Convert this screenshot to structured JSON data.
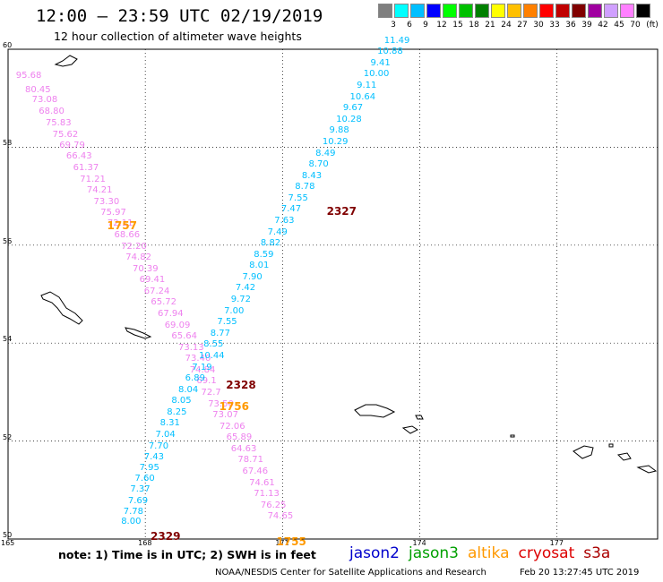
{
  "header": {
    "title": "12:00 — 23:59 UTC 02/19/2019",
    "subtitle": "12 hour collection of altimeter wave heights"
  },
  "legend": {
    "unit": "(ft)",
    "items": [
      {
        "label": "3",
        "color": "#7f7f7f"
      },
      {
        "label": "6",
        "color": "#00ffff"
      },
      {
        "label": "9",
        "color": "#00bfff"
      },
      {
        "label": "12",
        "color": "#0000ff"
      },
      {
        "label": "15",
        "color": "#00ff00"
      },
      {
        "label": "18",
        "color": "#00c000"
      },
      {
        "label": "21",
        "color": "#008000"
      },
      {
        "label": "24",
        "color": "#ffff00"
      },
      {
        "label": "27",
        "color": "#ffc000"
      },
      {
        "label": "30",
        "color": "#ff8000"
      },
      {
        "label": "33",
        "color": "#ff0000"
      },
      {
        "label": "36",
        "color": "#c00000"
      },
      {
        "label": "39",
        "color": "#800000"
      },
      {
        "label": "42",
        "color": "#a000a0"
      },
      {
        "label": "45",
        "color": "#d0a0ff"
      },
      {
        "label": "70",
        "color": "#ff80ff"
      },
      {
        "label": "",
        "color": "#000000"
      }
    ]
  },
  "map": {
    "lat_labels": [
      "60",
      "58",
      "56",
      "54",
      "52",
      "50"
    ],
    "lon_labels": [
      "165",
      "168",
      "171",
      "174",
      "177"
    ]
  },
  "tracks": [
    {
      "name": "cryosat-track",
      "color": "#ee82ee",
      "points": [
        {
          "v": "95.68",
          "lon": 165.25,
          "lat": 59.45
        },
        {
          "v": "80.45",
          "lon": 165.45,
          "lat": 59.15
        },
        {
          "v": "73.08",
          "lon": 165.6,
          "lat": 58.95
        },
        {
          "v": "68.80",
          "lon": 165.75,
          "lat": 58.72
        },
        {
          "v": "75.83",
          "lon": 165.9,
          "lat": 58.48
        },
        {
          "v": "75.62",
          "lon": 166.05,
          "lat": 58.25
        },
        {
          "v": "69.79",
          "lon": 166.2,
          "lat": 58.02
        },
        {
          "v": "66.43",
          "lon": 166.35,
          "lat": 57.8
        },
        {
          "v": "61.37",
          "lon": 166.5,
          "lat": 57.57
        },
        {
          "v": "71.21",
          "lon": 166.65,
          "lat": 57.34
        },
        {
          "v": "74.21",
          "lon": 166.8,
          "lat": 57.12
        },
        {
          "v": "73.30",
          "lon": 166.95,
          "lat": 56.88
        },
        {
          "v": "75.97",
          "lon": 167.1,
          "lat": 56.65
        },
        {
          "v": "72.11",
          "lon": 167.25,
          "lat": 56.43
        },
        {
          "v": "68.66",
          "lon": 167.4,
          "lat": 56.2
        },
        {
          "v": "72.20",
          "lon": 167.55,
          "lat": 55.96
        },
        {
          "v": "74.82",
          "lon": 167.65,
          "lat": 55.74
        },
        {
          "v": "70.39",
          "lon": 167.8,
          "lat": 55.5
        },
        {
          "v": "69.41",
          "lon": 167.95,
          "lat": 55.28
        },
        {
          "v": "67.24",
          "lon": 168.05,
          "lat": 55.05
        },
        {
          "v": "65.72",
          "lon": 168.2,
          "lat": 54.82
        },
        {
          "v": "67.94",
          "lon": 168.35,
          "lat": 54.59
        },
        {
          "v": "69.09",
          "lon": 168.5,
          "lat": 54.36
        },
        {
          "v": "65.64",
          "lon": 168.65,
          "lat": 54.13
        },
        {
          "v": "73.13",
          "lon": 168.8,
          "lat": 53.9
        },
        {
          "v": "73.40",
          "lon": 168.95,
          "lat": 53.67
        },
        {
          "v": "74.84",
          "lon": 169.05,
          "lat": 53.44
        },
        {
          "v": "69.1",
          "lon": 169.2,
          "lat": 53.21
        },
        {
          "v": "72.7",
          "lon": 169.3,
          "lat": 52.98
        },
        {
          "v": "73.50",
          "lon": 169.45,
          "lat": 52.75
        },
        {
          "v": "73.07",
          "lon": 169.55,
          "lat": 52.52
        },
        {
          "v": "72.06",
          "lon": 169.7,
          "lat": 52.29
        },
        {
          "v": "65.89",
          "lon": 169.85,
          "lat": 52.06
        },
        {
          "v": "64.63",
          "lon": 169.95,
          "lat": 51.83
        },
        {
          "v": "78.71",
          "lon": 170.1,
          "lat": 51.6
        },
        {
          "v": "67.46",
          "lon": 170.2,
          "lat": 51.37
        },
        {
          "v": "74.61",
          "lon": 170.35,
          "lat": 51.14
        },
        {
          "v": "71.13",
          "lon": 170.45,
          "lat": 50.91
        },
        {
          "v": "76.25",
          "lon": 170.6,
          "lat": 50.68
        },
        {
          "v": "74.65",
          "lon": 170.75,
          "lat": 50.45
        }
      ]
    },
    {
      "name": "jason-track",
      "color": "#00bfff",
      "points": [
        {
          "v": "8.00",
          "lon": 167.55,
          "lat": 50.35
        },
        {
          "v": "7.78",
          "lon": 167.6,
          "lat": 50.55
        },
        {
          "v": "7.69",
          "lon": 167.7,
          "lat": 50.77
        },
        {
          "v": "7.37",
          "lon": 167.75,
          "lat": 51.0
        },
        {
          "v": "7.60",
          "lon": 167.85,
          "lat": 51.22
        },
        {
          "v": "7.95",
          "lon": 167.95,
          "lat": 51.44
        },
        {
          "v": "7.43",
          "lon": 168.05,
          "lat": 51.66
        },
        {
          "v": "7.70",
          "lon": 168.15,
          "lat": 51.88
        },
        {
          "v": "7.04",
          "lon": 168.3,
          "lat": 52.12
        },
        {
          "v": "8.31",
          "lon": 168.4,
          "lat": 52.35
        },
        {
          "v": "8.25",
          "lon": 168.55,
          "lat": 52.58
        },
        {
          "v": "8.05",
          "lon": 168.65,
          "lat": 52.81
        },
        {
          "v": "8.04",
          "lon": 168.8,
          "lat": 53.04
        },
        {
          "v": "6.89",
          "lon": 168.95,
          "lat": 53.27
        },
        {
          "v": "7.19",
          "lon": 169.1,
          "lat": 53.5
        },
        {
          "v": "10.44",
          "lon": 169.25,
          "lat": 53.73
        },
        {
          "v": "8.55",
          "lon": 169.35,
          "lat": 53.96
        },
        {
          "v": "8.77",
          "lon": 169.5,
          "lat": 54.19
        },
        {
          "v": "7.55",
          "lon": 169.65,
          "lat": 54.42
        },
        {
          "v": "7.00",
          "lon": 169.8,
          "lat": 54.65
        },
        {
          "v": "9.72",
          "lon": 169.95,
          "lat": 54.88
        },
        {
          "v": "7.42",
          "lon": 170.05,
          "lat": 55.11
        },
        {
          "v": "7.90",
          "lon": 170.2,
          "lat": 55.34
        },
        {
          "v": "8.01",
          "lon": 170.35,
          "lat": 55.57
        },
        {
          "v": "8.59",
          "lon": 170.45,
          "lat": 55.8
        },
        {
          "v": "8.82",
          "lon": 170.6,
          "lat": 56.03
        },
        {
          "v": "7.49",
          "lon": 170.75,
          "lat": 56.26
        },
        {
          "v": "7.63",
          "lon": 170.9,
          "lat": 56.49
        },
        {
          "v": "7.47",
          "lon": 171.05,
          "lat": 56.72
        },
        {
          "v": "7.55",
          "lon": 171.2,
          "lat": 56.95
        },
        {
          "v": "8.78",
          "lon": 171.35,
          "lat": 57.18
        },
        {
          "v": "8.43",
          "lon": 171.5,
          "lat": 57.41
        },
        {
          "v": "8.70",
          "lon": 171.65,
          "lat": 57.64
        },
        {
          "v": "8.49",
          "lon": 171.8,
          "lat": 57.87
        },
        {
          "v": "10.29",
          "lon": 171.95,
          "lat": 58.1
        },
        {
          "v": "9.88",
          "lon": 172.1,
          "lat": 58.33
        },
        {
          "v": "10.28",
          "lon": 172.25,
          "lat": 58.56
        },
        {
          "v": "9.67",
          "lon": 172.4,
          "lat": 58.79
        },
        {
          "v": "10.64",
          "lon": 172.55,
          "lat": 59.02
        },
        {
          "v": "9.11",
          "lon": 172.7,
          "lat": 59.25
        },
        {
          "v": "10.00",
          "lon": 172.85,
          "lat": 59.48
        },
        {
          "v": "9.41",
          "lon": 173.0,
          "lat": 59.71
        },
        {
          "v": "10.88",
          "lon": 173.15,
          "lat": 59.94
        },
        {
          "v": "11.49",
          "lon": 173.3,
          "lat": 60.17
        }
      ]
    }
  ],
  "pass_labels": [
    {
      "text": "1757",
      "color": "#ff9900",
      "lon": 167.4,
      "lat": 56.4
    },
    {
      "text": "2327",
      "color": "#800000",
      "lon": 172.2,
      "lat": 56.7
    },
    {
      "text": "2328",
      "color": "#800000",
      "lon": 170.0,
      "lat": 53.15
    },
    {
      "text": "1756",
      "color": "#ff9900",
      "lon": 169.85,
      "lat": 52.7
    },
    {
      "text": "2329",
      "color": "#800000",
      "lon": 168.35,
      "lat": 50.05
    },
    {
      "text": "1755",
      "color": "#ff9900",
      "lon": 171.1,
      "lat": 49.95
    }
  ],
  "footer": {
    "note": "note: 1) Time is in UTC; 2) SWH is in feet",
    "satellites": [
      {
        "label": "jason2",
        "color": "#0000cc"
      },
      {
        "label": "jason3",
        "color": "#00a000"
      },
      {
        "label": "altika",
        "color": "#ff9900"
      },
      {
        "label": "cryosat",
        "color": "#dd0000"
      },
      {
        "label": "s3a",
        "color": "#aa0000"
      }
    ],
    "credit": "NOAA/NESDIS Center for Satellite Applications and Research",
    "timestamp": "Feb 20 13:27:45 UTC 2019"
  }
}
